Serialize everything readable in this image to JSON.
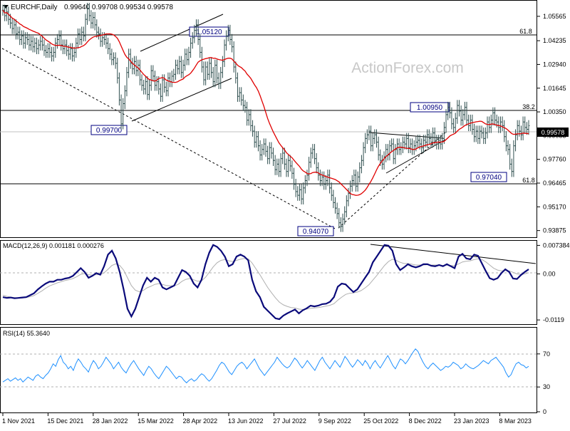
{
  "header": {
    "symbol": "EURCHF,Daily",
    "ohlc": "0.99640 0.99708 0.99534 0.99578"
  },
  "watermark": "ActionForex.com",
  "colors": {
    "background": "#ffffff",
    "price_line": "#2f4f4f",
    "ma": "#e00000",
    "macd": "#0a0a7a",
    "signal": "#b0b0b0",
    "rsi": "#1e90ff",
    "annotation": "#000080",
    "watermark": "#c8c8c8"
  },
  "chart_data": [
    {
      "type": "candlestick",
      "panel": "price",
      "x_tick_labels": [
        "1 Nov 2021",
        "15 Dec 2021",
        "28 Jan 2022",
        "15 Mar 2022",
        "28 Apr 2022",
        "13 Jun 2022",
        "27 Jul 2022",
        "9 Sep 2022",
        "25 Oct 2022",
        "8 Dec 2022",
        "23 Jan 2023",
        "8 Mar 2023"
      ],
      "y_tick_labels": [
        "1.05565",
        "1.04235",
        "1.02940",
        "1.01645",
        "1.00350",
        "0.99055",
        "0.97760",
        "0.96465",
        "0.95170",
        "0.93875"
      ],
      "ylim": [
        0.9355,
        1.063
      ],
      "current_price_label": "0.99578",
      "close": [
        1.059,
        1.056,
        1.058,
        1.054,
        1.052,
        1.049,
        1.051,
        1.046,
        1.047,
        1.043,
        1.045,
        1.041,
        1.044,
        1.043,
        1.04,
        1.042,
        1.039,
        1.041,
        1.038,
        1.04,
        1.042,
        1.04,
        1.037,
        1.036,
        1.038,
        1.036,
        1.034,
        1.036,
        1.041,
        1.043,
        1.045,
        1.04,
        1.038,
        1.04,
        1.037,
        1.035,
        1.038,
        1.034,
        1.036,
        1.041,
        1.046,
        1.043,
        1.047,
        1.045,
        1.054,
        1.06,
        1.056,
        1.052,
        1.055,
        1.051,
        1.047,
        1.046,
        1.042,
        1.044,
        1.043,
        1.041,
        1.038,
        1.035,
        1.032,
        1.033,
        1.03,
        1.022,
        1.01,
        0.997,
        1.008,
        1.015,
        1.025,
        1.035,
        1.03,
        1.027,
        1.031,
        1.026,
        1.029,
        1.021,
        1.018,
        1.016,
        1.02,
        1.013,
        1.018,
        1.026,
        1.023,
        1.018,
        1.02,
        1.016,
        1.012,
        1.021,
        1.017,
        1.015,
        1.022,
        1.02,
        1.023,
        1.024,
        1.029,
        1.027,
        1.031,
        1.025,
        1.029,
        1.035,
        1.032,
        1.036,
        1.041,
        1.044,
        1.048,
        1.051,
        1.043,
        1.036,
        1.028,
        1.021,
        1.028,
        1.024,
        1.03,
        1.025,
        1.02,
        1.029,
        1.022,
        1.019,
        1.025,
        1.031,
        1.04,
        1.045,
        1.048,
        1.043,
        1.039,
        1.028,
        1.022,
        1.012,
        1.014,
        1.01,
        1.007,
        1.006,
        0.999,
        1.002,
        0.996,
        0.993,
        0.987,
        0.99,
        0.985,
        0.98,
        0.983,
        0.986,
        0.982,
        0.978,
        0.984,
        0.981,
        0.977,
        0.972,
        0.975,
        0.971,
        0.978,
        0.981,
        0.975,
        0.971,
        0.977,
        0.974,
        0.97,
        0.964,
        0.96,
        0.958,
        0.961,
        0.956,
        0.962,
        0.966,
        0.969,
        0.976,
        0.981,
        0.983,
        0.978,
        0.973,
        0.969,
        0.966,
        0.968,
        0.964,
        0.966,
        0.969,
        0.962,
        0.958,
        0.954,
        0.951,
        0.948,
        0.943,
        0.941,
        0.945,
        0.949,
        0.955,
        0.959,
        0.963,
        0.966,
        0.969,
        0.963,
        0.968,
        0.973,
        0.977,
        0.984,
        0.989,
        0.991,
        0.993,
        0.985,
        0.989,
        0.991,
        0.987,
        0.98,
        0.977,
        0.975,
        0.979,
        0.983,
        0.98,
        0.985,
        0.986,
        0.978,
        0.983,
        0.986,
        0.983,
        0.984,
        0.987,
        0.986,
        0.989,
        0.984,
        0.986,
        0.983,
        0.985,
        0.987,
        0.988,
        0.986,
        0.984,
        0.988,
        0.987,
        0.991,
        0.989,
        0.987,
        0.992,
        0.988,
        0.986,
        0.988,
        0.986,
        0.989,
        0.995,
        1.002,
        1.006,
        1.003,
        0.997,
        0.995,
        1.0,
        1.007,
        1.004,
        0.999,
        1.002,
        1.006,
        0.999,
        0.996,
        0.999,
        0.994,
        0.99,
        0.993,
        0.989,
        0.993,
        0.992,
        0.989,
        0.992,
        0.998,
        0.995,
        0.999,
        1.003,
        0.999,
        0.998,
        0.995,
        0.998,
        0.996,
        0.99,
        0.985,
        0.983,
        0.975,
        0.971,
        0.985,
        0.991,
        0.996,
        0.993,
        0.991,
        0.998,
        0.995,
        0.994,
        0.996
      ]
    },
    {
      "type": "line",
      "panel": "macd",
      "label": "MACD(12,26,9) 0.001181 0.000276",
      "y_tick_labels": [
        "0.007384",
        "0.00",
        "-0.0119"
      ],
      "ylim": [
        -0.0128,
        0.0082
      ],
      "series": [
        {
          "values": [
            -0.006,
            -0.0062,
            -0.0061,
            -0.0063,
            -0.0062,
            -0.0061,
            -0.006,
            -0.0055,
            -0.005,
            -0.004,
            -0.0032,
            -0.0025,
            -0.002,
            -0.002,
            -0.0015,
            -0.0015,
            -0.0012,
            -0.001,
            -0.0005,
            0.0005,
            0.0015,
            0.0005,
            -0.001,
            -0.0005,
            0.0002,
            -0.0002,
            0.002,
            0.005,
            0.006,
            0.004,
            0.0005,
            -0.004,
            -0.009,
            -0.011,
            -0.009,
            -0.006,
            -0.003,
            -0.001,
            -0.002,
            -0.001,
            -0.0015,
            -0.0035,
            -0.004,
            -0.0035,
            -0.003,
            -0.001,
            0.001,
            0.0005,
            -0.0005,
            -0.0025,
            -0.0035,
            -0.0015,
            0.0025,
            0.0055,
            0.0075,
            0.007,
            0.006,
            0.0045,
            0.002,
            0.0025,
            0.0045,
            0.005,
            0.0045,
            0.0035,
            -0.0015,
            -0.0045,
            -0.006,
            -0.0085,
            -0.0095,
            -0.0105,
            -0.0115,
            -0.0117,
            -0.0108,
            -0.0102,
            -0.0097,
            -0.0092,
            -0.0102,
            -0.0094,
            -0.0089,
            -0.0082,
            -0.0084,
            -0.0082,
            -0.0078,
            -0.0077,
            -0.0072,
            -0.006,
            -0.0033,
            -0.0025,
            -0.0027,
            -0.0037,
            -0.0047,
            -0.004,
            -0.0025,
            -0.001,
            0.0005,
            0.003,
            0.0045,
            0.006,
            0.0075,
            0.0073,
            0.006,
            0.0025,
            0.001,
            0.0017,
            0.0025,
            0.002,
            0.0017,
            0.002,
            0.0025,
            0.0025,
            0.0021,
            0.002,
            0.0023,
            0.002,
            0.0025,
            0.002,
            0.0015,
            0.0045,
            0.0052,
            0.004,
            0.0038,
            0.005,
            0.0047,
            0.0027,
            0.0007,
            -0.0011,
            -0.0015,
            -0.0011,
            0.0002,
            0.0012,
            0.0005,
            -0.0012,
            -0.0013,
            -0.0003,
            0.0005,
            0.0012
          ]
        },
        {
          "values": [
            -0.0055,
            -0.0058,
            -0.006,
            -0.0061,
            -0.0062,
            -0.0062,
            -0.0061,
            -0.0059,
            -0.0056,
            -0.005,
            -0.0044,
            -0.0037,
            -0.0031,
            -0.0027,
            -0.0023,
            -0.002,
            -0.0017,
            -0.0015,
            -0.0012,
            -0.0007,
            -0.0001,
            0.0001,
            -0.0002,
            -0.0003,
            -0.0002,
            -0.0002,
            0.0003,
            0.0012,
            0.0022,
            0.0026,
            0.0022,
            0.001,
            -0.001,
            -0.003,
            -0.0042,
            -0.0046,
            -0.0043,
            -0.0036,
            -0.0032,
            -0.0027,
            -0.0025,
            -0.0027,
            -0.003,
            -0.0031,
            -0.0031,
            -0.0027,
            -0.0019,
            -0.0014,
            -0.0012,
            -0.0015,
            -0.0019,
            -0.0018,
            -0.0009,
            0.0004,
            0.0018,
            0.0029,
            0.0035,
            0.0037,
            0.0034,
            0.0032,
            0.0035,
            0.0038,
            0.004,
            0.0039,
            0.0028,
            0.0013,
            -0.0002,
            -0.0019,
            -0.0035,
            -0.0049,
            -0.0062,
            -0.0073,
            -0.008,
            -0.0084,
            -0.0087,
            -0.0088,
            -0.0091,
            -0.0092,
            -0.0091,
            -0.0089,
            -0.0088,
            -0.0087,
            -0.0085,
            -0.0083,
            -0.0081,
            -0.0077,
            -0.0068,
            -0.006,
            -0.0053,
            -0.005,
            -0.0049,
            -0.0047,
            -0.0043,
            -0.0036,
            -0.0028,
            -0.0016,
            -0.0004,
            0.0009,
            0.0022,
            0.0032,
            0.0038,
            0.0035,
            0.003,
            0.0027,
            0.0027,
            0.0025,
            0.0023,
            0.0023,
            0.0023,
            0.0024,
            0.0023,
            0.0023,
            0.0023,
            0.0022,
            0.0023,
            0.0022,
            0.0021,
            0.0026,
            0.0031,
            0.0033,
            0.0034,
            0.0037,
            0.0039,
            0.0037,
            0.0031,
            0.0023,
            0.0015,
            0.001,
            0.0008,
            0.0009,
            0.0008,
            0.0004,
            0.0,
            -0.0001,
            0.0,
            0.0003
          ]
        }
      ]
    },
    {
      "type": "line",
      "panel": "rsi",
      "label": "RSI(14) 55.3640",
      "y_tick_labels": [
        "70",
        "30",
        "0"
      ],
      "ylim": [
        0,
        100
      ],
      "values": [
        36,
        38,
        40,
        37,
        39,
        41,
        38,
        40,
        36,
        39,
        42,
        40,
        38,
        43,
        45,
        42,
        40,
        44,
        47,
        52,
        58,
        55,
        63,
        68,
        60,
        57,
        52,
        55,
        50,
        58,
        64,
        60,
        55,
        52,
        48,
        56,
        62,
        58,
        52,
        55,
        60,
        66,
        62,
        58,
        52,
        56,
        60,
        54,
        50,
        47,
        53,
        58,
        62,
        57,
        52,
        48,
        44,
        50,
        55,
        52,
        47,
        43,
        40,
        45,
        50,
        55,
        52,
        48,
        44,
        40,
        43,
        42,
        38,
        35,
        38,
        40,
        37,
        39,
        43,
        46,
        44,
        40,
        37,
        40,
        45,
        50,
        56,
        60,
        58,
        53,
        48,
        45,
        50,
        55,
        58,
        60,
        57,
        52,
        56,
        60,
        64,
        58,
        52,
        48,
        44,
        48,
        52,
        56,
        60,
        66,
        62,
        58,
        55,
        53,
        55,
        60,
        65,
        62,
        57,
        53,
        57,
        62,
        58,
        54,
        50,
        56,
        62,
        66,
        60,
        56,
        52,
        57,
        62,
        58,
        54,
        60,
        67,
        63,
        58,
        54,
        58,
        63,
        60,
        56,
        62,
        58,
        52,
        58,
        62,
        57,
        53,
        58,
        63,
        68,
        62,
        56,
        52,
        58,
        64,
        62,
        58,
        62,
        67,
        72,
        76,
        73,
        66,
        60,
        55,
        52,
        56,
        59,
        56,
        53,
        50,
        52,
        55,
        54,
        56,
        60,
        58,
        56,
        52,
        54,
        58,
        55,
        53,
        52,
        54,
        56,
        59,
        62,
        60,
        58,
        62,
        64,
        66,
        62,
        58,
        54,
        47,
        42,
        45,
        52,
        58,
        60,
        57,
        56,
        53,
        55
      ]
    }
  ],
  "annotations": {
    "levels": [
      "1.05120",
      "1.00950",
      "0.99700",
      "0.97040",
      "0.94070"
    ],
    "fib": [
      "61.8",
      "38.2",
      "61.8"
    ]
  }
}
